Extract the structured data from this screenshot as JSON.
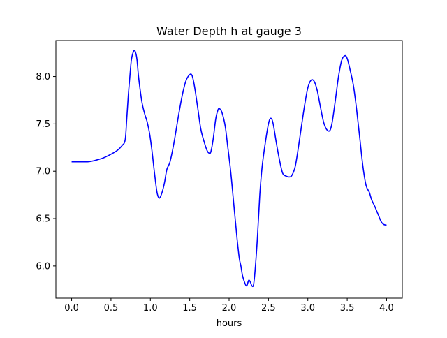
{
  "chart_data": {
    "type": "line",
    "title": "Water Depth h at gauge 3",
    "xlabel": "hours",
    "ylabel": "",
    "xlim": [
      -0.2,
      4.2
    ],
    "ylim": [
      5.66,
      8.38
    ],
    "grid": false,
    "x_ticks": [
      0.0,
      0.5,
      1.0,
      1.5,
      2.0,
      2.5,
      3.0,
      3.5,
      4.0
    ],
    "x_tick_labels": [
      "0.0",
      "0.5",
      "1.0",
      "1.5",
      "2.0",
      "2.5",
      "3.0",
      "3.5",
      "4.0"
    ],
    "y_ticks": [
      6.0,
      6.5,
      7.0,
      7.5,
      8.0
    ],
    "y_tick_labels": [
      "6.0",
      "6.5",
      "7.0",
      "7.5",
      "8.0"
    ],
    "series": [
      {
        "color": "#0000ff",
        "points": [
          [
            0.0,
            7.1
          ],
          [
            0.1,
            7.1
          ],
          [
            0.2,
            7.1
          ],
          [
            0.25,
            7.105
          ],
          [
            0.3,
            7.115
          ],
          [
            0.4,
            7.14
          ],
          [
            0.5,
            7.18
          ],
          [
            0.58,
            7.22
          ],
          [
            0.64,
            7.27
          ],
          [
            0.68,
            7.33
          ],
          [
            0.7,
            7.55
          ],
          [
            0.72,
            7.8
          ],
          [
            0.74,
            8.0
          ],
          [
            0.76,
            8.18
          ],
          [
            0.79,
            8.27
          ],
          [
            0.81,
            8.26
          ],
          [
            0.83,
            8.18
          ],
          [
            0.85,
            8.0
          ],
          [
            0.88,
            7.8
          ],
          [
            0.9,
            7.7
          ],
          [
            0.93,
            7.6
          ],
          [
            0.96,
            7.52
          ],
          [
            0.99,
            7.4
          ],
          [
            1.02,
            7.22
          ],
          [
            1.05,
            7.0
          ],
          [
            1.08,
            6.8
          ],
          [
            1.1,
            6.73
          ],
          [
            1.12,
            6.72
          ],
          [
            1.15,
            6.78
          ],
          [
            1.18,
            6.88
          ],
          [
            1.21,
            7.02
          ],
          [
            1.25,
            7.1
          ],
          [
            1.3,
            7.3
          ],
          [
            1.35,
            7.55
          ],
          [
            1.4,
            7.78
          ],
          [
            1.45,
            7.95
          ],
          [
            1.5,
            8.02
          ],
          [
            1.53,
            8.01
          ],
          [
            1.56,
            7.9
          ],
          [
            1.6,
            7.68
          ],
          [
            1.64,
            7.45
          ],
          [
            1.68,
            7.32
          ],
          [
            1.72,
            7.22
          ],
          [
            1.75,
            7.19
          ],
          [
            1.77,
            7.21
          ],
          [
            1.8,
            7.35
          ],
          [
            1.83,
            7.55
          ],
          [
            1.86,
            7.65
          ],
          [
            1.88,
            7.66
          ],
          [
            1.91,
            7.62
          ],
          [
            1.95,
            7.48
          ],
          [
            1.98,
            7.28
          ],
          [
            2.02,
            7.0
          ],
          [
            2.06,
            6.65
          ],
          [
            2.1,
            6.3
          ],
          [
            2.13,
            6.08
          ],
          [
            2.15,
            6.0
          ],
          [
            2.17,
            5.9
          ],
          [
            2.2,
            5.82
          ],
          [
            2.22,
            5.79
          ],
          [
            2.23,
            5.8
          ],
          [
            2.25,
            5.85
          ],
          [
            2.27,
            5.83
          ],
          [
            2.29,
            5.79
          ],
          [
            2.31,
            5.8
          ],
          [
            2.33,
            5.95
          ],
          [
            2.36,
            6.3
          ],
          [
            2.39,
            6.75
          ],
          [
            2.42,
            7.05
          ],
          [
            2.46,
            7.3
          ],
          [
            2.5,
            7.5
          ],
          [
            2.53,
            7.56
          ],
          [
            2.56,
            7.5
          ],
          [
            2.6,
            7.3
          ],
          [
            2.64,
            7.12
          ],
          [
            2.68,
            6.98
          ],
          [
            2.72,
            6.95
          ],
          [
            2.77,
            6.94
          ],
          [
            2.8,
            6.96
          ],
          [
            2.84,
            7.05
          ],
          [
            2.88,
            7.25
          ],
          [
            2.92,
            7.48
          ],
          [
            2.96,
            7.7
          ],
          [
            3.0,
            7.88
          ],
          [
            3.04,
            7.96
          ],
          [
            3.08,
            7.95
          ],
          [
            3.12,
            7.85
          ],
          [
            3.16,
            7.68
          ],
          [
            3.2,
            7.52
          ],
          [
            3.24,
            7.44
          ],
          [
            3.28,
            7.43
          ],
          [
            3.31,
            7.52
          ],
          [
            3.35,
            7.75
          ],
          [
            3.39,
            8.0
          ],
          [
            3.43,
            8.17
          ],
          [
            3.47,
            8.22
          ],
          [
            3.5,
            8.19
          ],
          [
            3.54,
            8.06
          ],
          [
            3.58,
            7.9
          ],
          [
            3.62,
            7.65
          ],
          [
            3.66,
            7.35
          ],
          [
            3.7,
            7.05
          ],
          [
            3.74,
            6.85
          ],
          [
            3.78,
            6.78
          ],
          [
            3.81,
            6.7
          ],
          [
            3.85,
            6.63
          ],
          [
            3.89,
            6.55
          ],
          [
            3.93,
            6.47
          ],
          [
            3.96,
            6.44
          ],
          [
            4.0,
            6.43
          ]
        ]
      }
    ]
  }
}
